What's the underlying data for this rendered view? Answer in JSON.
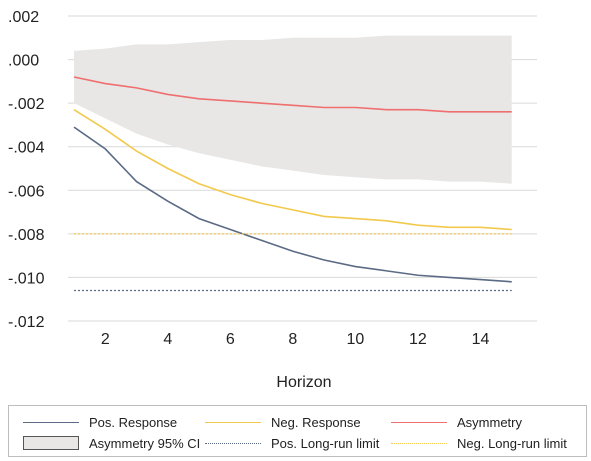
{
  "chart_data": {
    "type": "line",
    "xlabel": "Horizon",
    "xlim": [
      1,
      15
    ],
    "ylim": [
      -0.012,
      0.002
    ],
    "x_ticks": [
      2,
      4,
      6,
      8,
      10,
      12,
      14
    ],
    "y_ticks": [
      0.002,
      0.0,
      -0.002,
      -0.004,
      -0.006,
      -0.008,
      -0.01,
      -0.012
    ],
    "y_tick_labels": [
      ".002",
      ".000",
      "-.002",
      "-.004",
      "-.006",
      "-.008",
      "-.010",
      "-.012"
    ],
    "x": [
      1,
      2,
      3,
      4,
      5,
      6,
      7,
      8,
      9,
      10,
      11,
      12,
      13,
      14,
      15
    ],
    "band": {
      "name": "Asymmetry 95% CI",
      "upper": [
        0.0004,
        0.0005,
        0.0007,
        0.0007,
        0.0008,
        0.0009,
        0.0009,
        0.001,
        0.001,
        0.001,
        0.0011,
        0.0011,
        0.0011,
        0.0011,
        0.0011
      ],
      "lower": [
        -0.002,
        -0.0027,
        -0.0034,
        -0.0039,
        -0.0043,
        -0.0046,
        -0.0049,
        -0.0051,
        -0.0053,
        -0.0054,
        -0.0055,
        -0.0055,
        -0.0056,
        -0.0056,
        -0.0057
      ],
      "color": "#e8e7e6"
    },
    "series": [
      {
        "name": "Pos. Response",
        "color": "#5b6b85",
        "style": "solid",
        "values": [
          -0.0031,
          -0.0041,
          -0.0056,
          -0.0065,
          -0.0073,
          -0.0078,
          -0.0083,
          -0.0088,
          -0.0092,
          -0.0095,
          -0.0097,
          -0.0099,
          -0.01,
          -0.0101,
          -0.0102
        ]
      },
      {
        "name": "Neg. Response",
        "color": "#f2c94c",
        "style": "solid",
        "values": [
          -0.0023,
          -0.0032,
          -0.0042,
          -0.005,
          -0.0057,
          -0.0062,
          -0.0066,
          -0.0069,
          -0.0072,
          -0.0073,
          -0.0074,
          -0.0076,
          -0.0077,
          -0.0077,
          -0.0078
        ]
      },
      {
        "name": "Asymmetry",
        "color": "#ef6f6f",
        "style": "solid",
        "values": [
          -0.0008,
          -0.0011,
          -0.0013,
          -0.0016,
          -0.0018,
          -0.0019,
          -0.002,
          -0.0021,
          -0.0022,
          -0.0022,
          -0.0023,
          -0.0023,
          -0.0024,
          -0.0024,
          -0.0024
        ]
      },
      {
        "name": "Pos. Long-run limit",
        "color": "#5b6b85",
        "style": "dotted",
        "values": [
          -0.0106,
          -0.0106,
          -0.0106,
          -0.0106,
          -0.0106,
          -0.0106,
          -0.0106,
          -0.0106,
          -0.0106,
          -0.0106,
          -0.0106,
          -0.0106,
          -0.0106,
          -0.0106,
          -0.0106
        ]
      },
      {
        "name": "Neg. Long-run limit",
        "color": "#f2c94c",
        "style": "dotted",
        "values": [
          -0.008,
          -0.008,
          -0.008,
          -0.008,
          -0.008,
          -0.008,
          -0.008,
          -0.008,
          -0.008,
          -0.008,
          -0.008,
          -0.008,
          -0.008,
          -0.008,
          -0.008
        ]
      }
    ],
    "grid": "horizontal",
    "legend": "bottom"
  }
}
